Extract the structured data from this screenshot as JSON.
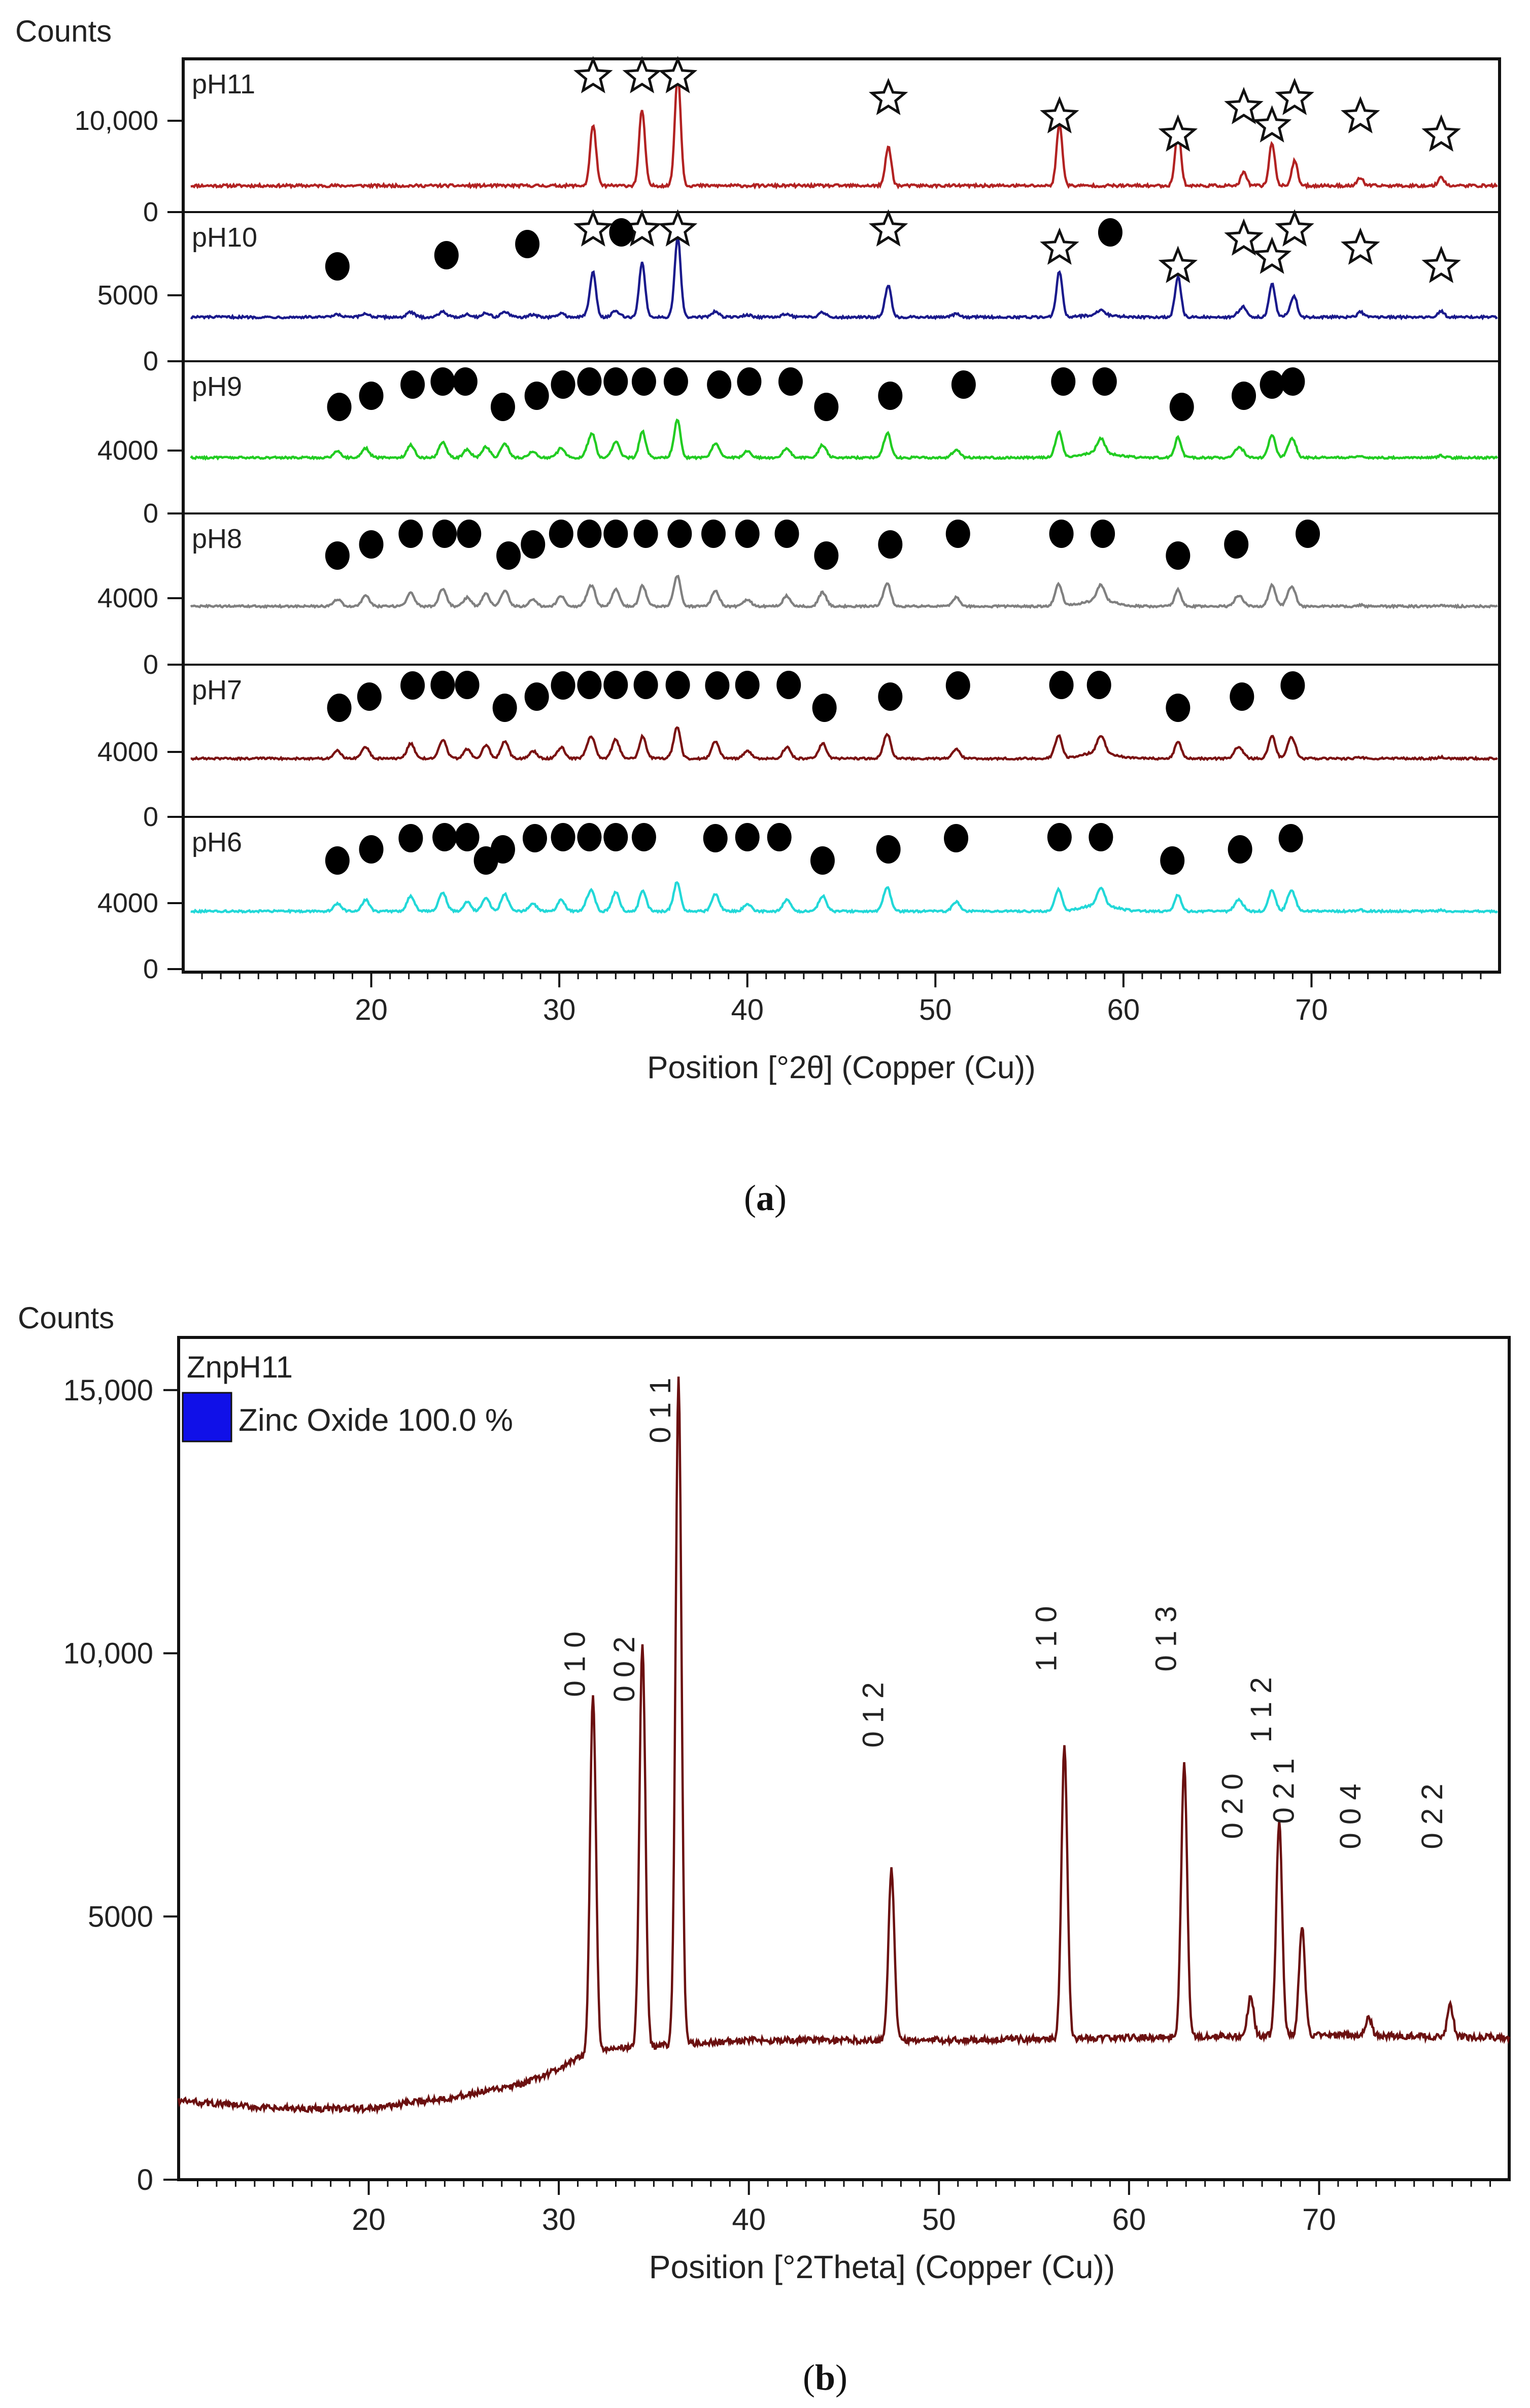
{
  "figure_a": {
    "caption_open": "(",
    "caption_letter": "a",
    "caption_close": ")"
  },
  "figure_b": {
    "caption_open": "(",
    "caption_letter": "b",
    "caption_close": ")"
  },
  "chart_data": [
    {
      "type": "line",
      "panel": "a",
      "title": "",
      "ylabel": "Counts",
      "xlabel": "Position [°2θ] (Copper (Cu))",
      "xlim": [
        10,
        80
      ],
      "x_ticks": [
        20,
        30,
        40,
        50,
        60,
        70
      ],
      "x_tick_labels": [
        "20",
        "30",
        "40",
        "50",
        "60",
        "70"
      ],
      "grid": false,
      "legend": "none",
      "baseline_label": "0",
      "zno_peaks": [
        31.8,
        34.4,
        36.3,
        47.5,
        56.6,
        62.9,
        66.4,
        67.9,
        69.1,
        72.6,
        76.9
      ],
      "lzh_peaks": [
        18.2,
        19.7,
        22.1,
        23.8,
        25.1,
        26.1,
        27.1,
        28.6,
        30.1,
        31.6,
        33.0,
        34.5,
        36.2,
        38.3,
        40.0,
        42.1,
        44.0,
        47.4,
        51.1,
        56.5,
        58.8,
        62.9,
        66.1,
        67.9,
        68.9
      ],
      "panels": [
        {
          "label": "pH11",
          "tick_label": "10,000",
          "color": "#b22222",
          "zno_scale": 1.0,
          "lzh_scale": 0.0,
          "stars": [
            31.8,
            34.4,
            36.3,
            47.5,
            56.6,
            62.9,
            66.4,
            67.9,
            69.1,
            72.6,
            76.9
          ],
          "dots": []
        },
        {
          "label": "pH10",
          "tick_label": "5000",
          "color": "#1a1a8c",
          "zno_scale": 0.85,
          "lzh_scale": 0.22,
          "stars": [
            31.8,
            34.4,
            36.3,
            47.5,
            56.6,
            62.9,
            66.4,
            67.9,
            69.1,
            72.6,
            76.9
          ],
          "dots": [
            18.2,
            24.0,
            28.3,
            33.3,
            59.3
          ]
        },
        {
          "label": "pH9",
          "tick_label": "4000",
          "color": "#22cc22",
          "zno_scale": 0.35,
          "lzh_scale": 0.65,
          "stars": [],
          "dots": [
            18.3,
            20.0,
            22.2,
            23.8,
            25.0,
            27.0,
            28.8,
            30.2,
            31.6,
            33.0,
            34.5,
            36.2,
            38.5,
            40.1,
            42.3,
            44.2,
            47.6,
            51.5,
            56.8,
            59.0,
            63.1,
            66.4,
            67.9,
            69.0
          ]
        },
        {
          "label": "pH8",
          "tick_label": "4000",
          "color": "#808080",
          "zno_scale": 0.25,
          "lzh_scale": 0.75,
          "stars": [],
          "dots": [
            18.2,
            20.0,
            22.1,
            23.9,
            25.2,
            27.3,
            28.6,
            30.1,
            31.6,
            33.0,
            34.6,
            36.4,
            38.2,
            40.0,
            42.1,
            44.2,
            47.6,
            51.2,
            56.7,
            58.9,
            62.9,
            66.0,
            69.8
          ]
        },
        {
          "label": "pH7",
          "tick_label": "4000",
          "color": "#7a1212",
          "zno_scale": 0.25,
          "lzh_scale": 0.8,
          "stars": [],
          "dots": [
            18.3,
            19.9,
            22.2,
            23.8,
            25.1,
            27.1,
            28.8,
            30.2,
            31.6,
            33.0,
            34.6,
            36.3,
            38.4,
            40.0,
            42.2,
            44.1,
            47.6,
            51.2,
            56.7,
            58.7,
            62.9,
            66.3,
            69.0
          ]
        },
        {
          "label": "pH6",
          "tick_label": "4000",
          "color": "#22d8d8",
          "zno_scale": 0.22,
          "lzh_scale": 0.8,
          "stars": [],
          "dots": [
            18.2,
            20.0,
            22.1,
            23.9,
            25.1,
            26.1,
            27.0,
            28.7,
            30.2,
            31.6,
            33.0,
            34.5,
            38.3,
            40.0,
            41.7,
            44.0,
            47.5,
            51.1,
            56.6,
            58.8,
            62.6,
            66.2,
            68.9
          ]
        }
      ]
    },
    {
      "type": "line",
      "panel": "b",
      "title": "ZnpH11",
      "legend_label": "Zinc Oxide 100.0 %",
      "legend_color": "#1010e8",
      "legend": "top-left",
      "ylabel": "Counts",
      "xlabel": "Position [°2Theta] (Copper (Cu))",
      "xlim": [
        10,
        80
      ],
      "ylim": [
        0,
        16000
      ],
      "y_ticks": [
        0,
        5000,
        10000,
        15000
      ],
      "y_tick_labels": [
        "0",
        "5000",
        "10,000",
        "15,000"
      ],
      "x_ticks": [
        20,
        30,
        40,
        50,
        60,
        70
      ],
      "x_tick_labels": [
        "20",
        "30",
        "40",
        "50",
        "60",
        "70"
      ],
      "grid": false,
      "line_color": "#6b1010",
      "background_points": [
        [
          10,
          1500
        ],
        [
          15,
          1350
        ],
        [
          20,
          1350
        ],
        [
          25,
          1600
        ],
        [
          28,
          1800
        ],
        [
          30,
          2100
        ],
        [
          31,
          2300
        ],
        [
          33,
          2500
        ],
        [
          40,
          2650
        ],
        [
          50,
          2650
        ],
        [
          60,
          2700
        ],
        [
          70,
          2750
        ],
        [
          80,
          2700
        ]
      ],
      "peaks": [
        {
          "x": 31.8,
          "y": 9200,
          "hkl": "0 1 0"
        },
        {
          "x": 34.4,
          "y": 10200,
          "hkl": "0 0 2"
        },
        {
          "x": 36.3,
          "y": 15200,
          "hkl": "0 1 1"
        },
        {
          "x": 47.5,
          "y": 5900,
          "hkl": "0 1 2"
        },
        {
          "x": 56.6,
          "y": 8200,
          "hkl": "1 1 0"
        },
        {
          "x": 62.9,
          "y": 7900,
          "hkl": "0 1 3"
        },
        {
          "x": 66.4,
          "y": 3500,
          "hkl": "0 2 0"
        },
        {
          "x": 67.9,
          "y": 6800,
          "hkl": "1 1 2"
        },
        {
          "x": 69.1,
          "y": 4800,
          "hkl": "0 2 1"
        },
        {
          "x": 72.6,
          "y": 3100,
          "hkl": "0 0 4"
        },
        {
          "x": 76.9,
          "y": 3300,
          "hkl": "0 2 2"
        }
      ]
    }
  ]
}
